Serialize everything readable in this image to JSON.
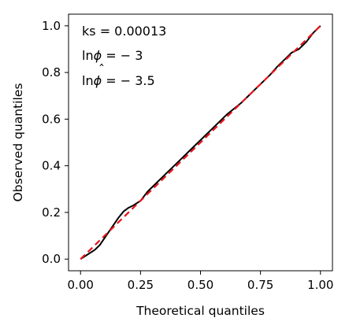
{
  "chart_data": {
    "type": "line",
    "xlabel": "Theoretical quantiles",
    "ylabel": "Observed quantiles",
    "xlim": [
      -0.05,
      1.05
    ],
    "ylim": [
      -0.05,
      1.05
    ],
    "xticks": [
      0.0,
      0.25,
      0.5,
      0.75,
      1.0
    ],
    "xtick_labels": [
      "0.00",
      "0.25",
      "0.50",
      "0.75",
      "1.00"
    ],
    "yticks": [
      0.0,
      0.2,
      0.4,
      0.6,
      0.8,
      1.0
    ],
    "ytick_labels": [
      "0.0",
      "0.2",
      "0.4",
      "0.6",
      "0.8",
      "1.0"
    ],
    "grid": false,
    "annotations": [
      {
        "name": "ks",
        "lines": [
          {
            "text": "ks = 0.00013"
          }
        ]
      },
      {
        "name": "lnphi",
        "lines": [
          {
            "text": "ln",
            "style": "normal"
          },
          {
            "text": "ϕ",
            "style": "italic"
          },
          {
            "text": " = − 3",
            "style": "normal"
          }
        ]
      },
      {
        "name": "lnphihat",
        "lines": [
          {
            "text": "ln",
            "style": "normal"
          },
          {
            "text": "ϕ",
            "style": "italic"
          },
          {
            "text": " = − 3.5",
            "style": "normal"
          }
        ],
        "hat": "ˆ"
      }
    ],
    "series": [
      {
        "role": "observed",
        "color": "#000000",
        "style": "solid",
        "x": [
          0.0,
          0.03,
          0.06,
          0.08,
          0.1,
          0.12,
          0.14,
          0.16,
          0.18,
          0.2,
          0.22,
          0.25,
          0.28,
          0.31,
          0.34,
          0.37,
          0.4,
          0.43,
          0.46,
          0.49,
          0.52,
          0.55,
          0.58,
          0.61,
          0.64,
          0.67,
          0.7,
          0.73,
          0.76,
          0.79,
          0.82,
          0.85,
          0.88,
          0.91,
          0.94,
          0.97,
          1.0
        ],
        "y": [
          0.0,
          0.02,
          0.04,
          0.06,
          0.09,
          0.12,
          0.15,
          0.18,
          0.205,
          0.22,
          0.23,
          0.25,
          0.29,
          0.32,
          0.35,
          0.38,
          0.41,
          0.44,
          0.47,
          0.5,
          0.53,
          0.56,
          0.59,
          0.62,
          0.645,
          0.67,
          0.7,
          0.73,
          0.76,
          0.79,
          0.825,
          0.855,
          0.885,
          0.9,
          0.93,
          0.97,
          1.0
        ]
      },
      {
        "role": "reference",
        "color": "#e8141b",
        "style": "dashed",
        "x": [
          0.0,
          1.0
        ],
        "y": [
          0.0,
          1.0
        ]
      }
    ]
  }
}
